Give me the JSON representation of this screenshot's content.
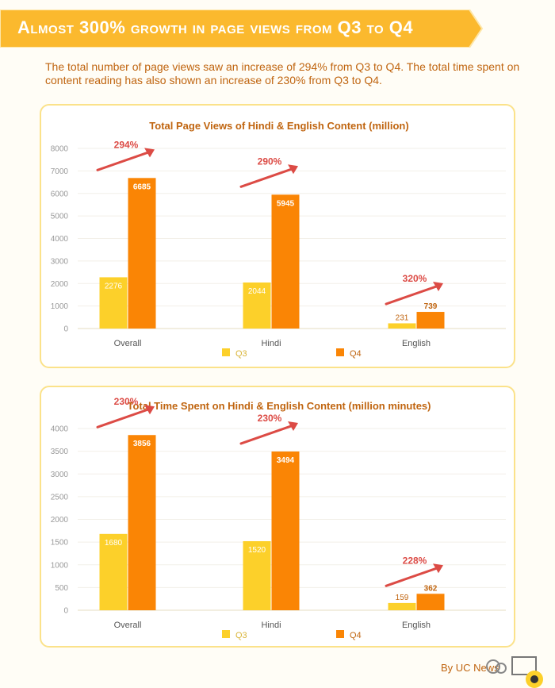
{
  "header": {
    "title": "Almost 300% growth in page views from Q3 to Q4"
  },
  "intro": "The total number of page views saw an increase of 294% from Q3 to Q4. The total time spent on content reading has also shown an increase of 230% from Q3 to Q4.",
  "footer": {
    "credit": "By UC News"
  },
  "colors": {
    "banner": "#fbb92e",
    "q3": "#fcd02a",
    "q4": "#fa8505",
    "arrow": "#dc4b45",
    "title": "#c06510",
    "text": "#555555"
  },
  "chart_data": [
    {
      "type": "bar",
      "title": "Total Page Views  of Hindi & English Content (million)",
      "categories": [
        "Overall",
        "Hindi",
        "English"
      ],
      "series": [
        {
          "name": "Q3",
          "values": [
            2276,
            2044,
            231
          ]
        },
        {
          "name": "Q4",
          "values": [
            6685,
            5945,
            739
          ]
        }
      ],
      "growth": [
        "294%",
        "290%",
        "320%"
      ],
      "ylim": [
        0,
        8000
      ],
      "yticks": [
        0,
        1000,
        2000,
        3000,
        4000,
        5000,
        6000,
        7000,
        8000
      ],
      "grid": true,
      "legend": "bottom"
    },
    {
      "type": "bar",
      "title": "Total Time Spent on Hindi & English Content (million minutes)",
      "categories": [
        "Overall",
        "Hindi",
        "English"
      ],
      "series": [
        {
          "name": "Q3",
          "values": [
            1680,
            1520,
            159
          ]
        },
        {
          "name": "Q4",
          "values": [
            3856,
            3494,
            362
          ]
        }
      ],
      "growth": [
        "230%",
        "230%",
        "228%"
      ],
      "ylim": [
        0,
        4000
      ],
      "yticks": [
        0,
        500,
        1000,
        1500,
        2000,
        2500,
        3000,
        3500,
        4000
      ],
      "grid": true,
      "legend": "bottom"
    }
  ]
}
